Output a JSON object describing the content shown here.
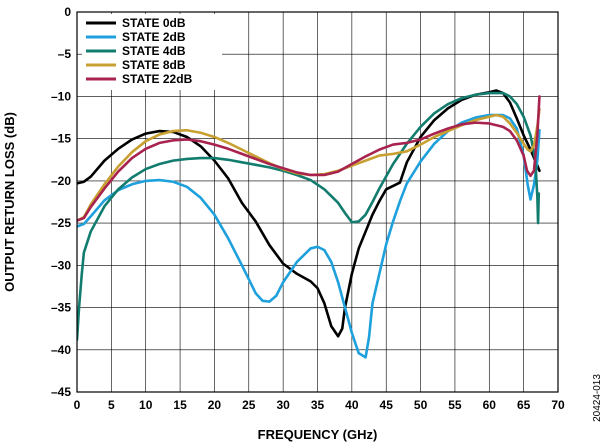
{
  "chart_data": {
    "type": "line",
    "title": "",
    "xlabel": "FREQUENCY (GHz)",
    "ylabel": "OUTPUT RETURN LOSS (dB)",
    "xlim": [
      0,
      70
    ],
    "ylim": [
      -45,
      0
    ],
    "x_ticks": [
      "0",
      "5",
      "10",
      "15",
      "20",
      "25",
      "30",
      "35",
      "40",
      "45",
      "50",
      "55",
      "60",
      "65",
      "70"
    ],
    "y_ticks": [
      "0",
      "–5",
      "–10",
      "–15",
      "–20",
      "–25",
      "–30",
      "–35",
      "–40",
      "–45"
    ],
    "grid": true,
    "legend_position": "top-left",
    "figure_id": "20424-013",
    "series": [
      {
        "name": "STATE 0dB",
        "color": "#000000",
        "points": [
          [
            0,
            -20.3
          ],
          [
            1,
            -20.1
          ],
          [
            2,
            -19.5
          ],
          [
            4,
            -17.6
          ],
          [
            6,
            -16.2
          ],
          [
            8,
            -15.1
          ],
          [
            10,
            -14.4
          ],
          [
            12,
            -14.1
          ],
          [
            14,
            -14.2
          ],
          [
            16,
            -14.8
          ],
          [
            18,
            -15.9
          ],
          [
            20,
            -17.6
          ],
          [
            22,
            -19.7
          ],
          [
            24,
            -22.6
          ],
          [
            26,
            -24.8
          ],
          [
            28,
            -27.6
          ],
          [
            30,
            -29.8
          ],
          [
            32,
            -31.0
          ],
          [
            34,
            -31.9
          ],
          [
            35,
            -32.7
          ],
          [
            36,
            -34.5
          ],
          [
            37,
            -37.2
          ],
          [
            38,
            -38.4
          ],
          [
            38.6,
            -37.5
          ],
          [
            39,
            -35.0
          ],
          [
            40,
            -31.0
          ],
          [
            41,
            -28.0
          ],
          [
            42,
            -26.0
          ],
          [
            43,
            -24.0
          ],
          [
            44,
            -22.4
          ],
          [
            45,
            -21.0
          ],
          [
            46,
            -20.6
          ],
          [
            47,
            -20.2
          ],
          [
            48,
            -17.8
          ],
          [
            50,
            -14.8
          ],
          [
            52,
            -12.8
          ],
          [
            54,
            -11.4
          ],
          [
            56,
            -10.4
          ],
          [
            58,
            -9.8
          ],
          [
            60,
            -9.5
          ],
          [
            61,
            -9.3
          ],
          [
            62,
            -9.6
          ],
          [
            63,
            -10.7
          ],
          [
            64,
            -12.6
          ],
          [
            65,
            -14.6
          ],
          [
            66,
            -16.3
          ],
          [
            67,
            -18.2
          ],
          [
            67.3,
            -18.8
          ]
        ]
      },
      {
        "name": "STATE 2dB",
        "color": "#1ea0dc",
        "points": [
          [
            0,
            -25.4
          ],
          [
            1,
            -25.1
          ],
          [
            2,
            -24.2
          ],
          [
            4,
            -22.3
          ],
          [
            6,
            -21.1
          ],
          [
            8,
            -20.4
          ],
          [
            10,
            -20.0
          ],
          [
            12,
            -19.9
          ],
          [
            14,
            -20.1
          ],
          [
            16,
            -20.7
          ],
          [
            18,
            -22.0
          ],
          [
            20,
            -24.0
          ],
          [
            22,
            -26.8
          ],
          [
            24,
            -30.0
          ],
          [
            26,
            -33.3
          ],
          [
            27,
            -34.2
          ],
          [
            28,
            -34.3
          ],
          [
            29,
            -33.6
          ],
          [
            30,
            -32.0
          ],
          [
            32,
            -29.6
          ],
          [
            34,
            -28.0
          ],
          [
            35,
            -27.8
          ],
          [
            36,
            -28.2
          ],
          [
            37,
            -29.6
          ],
          [
            38,
            -32.0
          ],
          [
            39,
            -35.0
          ],
          [
            40,
            -38.0
          ],
          [
            41,
            -40.4
          ],
          [
            42,
            -40.9
          ],
          [
            42.5,
            -38.5
          ],
          [
            43,
            -34.5
          ],
          [
            44,
            -31.0
          ],
          [
            45,
            -27.5
          ],
          [
            46,
            -24.8
          ],
          [
            47,
            -22.4
          ],
          [
            48,
            -20.3
          ],
          [
            50,
            -17.7
          ],
          [
            52,
            -15.6
          ],
          [
            54,
            -14.1
          ],
          [
            56,
            -13.1
          ],
          [
            58,
            -12.5
          ],
          [
            60,
            -12.2
          ],
          [
            62,
            -12.2
          ],
          [
            63,
            -12.6
          ],
          [
            64,
            -13.8
          ],
          [
            65,
            -17.0
          ],
          [
            65.6,
            -20.5
          ],
          [
            66,
            -22.2
          ],
          [
            66.5,
            -20.5
          ],
          [
            67,
            -17.5
          ],
          [
            67.3,
            -14.0
          ]
        ]
      },
      {
        "name": "STATE 4dB",
        "color": "#127c6e",
        "points": [
          [
            0,
            -38.8
          ],
          [
            0.3,
            -35.0
          ],
          [
            0.7,
            -31.0
          ],
          [
            1,
            -28.5
          ],
          [
            2,
            -26.0
          ],
          [
            4,
            -23.0
          ],
          [
            6,
            -21.0
          ],
          [
            8,
            -19.6
          ],
          [
            10,
            -18.6
          ],
          [
            12,
            -18.0
          ],
          [
            14,
            -17.6
          ],
          [
            16,
            -17.4
          ],
          [
            18,
            -17.3
          ],
          [
            20,
            -17.3
          ],
          [
            22,
            -17.5
          ],
          [
            24,
            -17.8
          ],
          [
            26,
            -18.1
          ],
          [
            28,
            -18.4
          ],
          [
            30,
            -18.8
          ],
          [
            32,
            -19.3
          ],
          [
            34,
            -19.9
          ],
          [
            36,
            -21.0
          ],
          [
            38,
            -22.6
          ],
          [
            39,
            -23.8
          ],
          [
            40,
            -24.9
          ],
          [
            41,
            -24.8
          ],
          [
            42,
            -24.0
          ],
          [
            43,
            -22.5
          ],
          [
            44,
            -20.9
          ],
          [
            46,
            -18.0
          ],
          [
            48,
            -15.6
          ],
          [
            50,
            -13.6
          ],
          [
            52,
            -12.0
          ],
          [
            54,
            -10.9
          ],
          [
            56,
            -10.2
          ],
          [
            58,
            -9.8
          ],
          [
            60,
            -9.6
          ],
          [
            62,
            -9.6
          ],
          [
            63,
            -10.0
          ],
          [
            64,
            -10.9
          ],
          [
            65,
            -12.4
          ],
          [
            66,
            -14.6
          ],
          [
            66.7,
            -17.5
          ],
          [
            67,
            -22.0
          ],
          [
            67.1,
            -25.0
          ],
          [
            67.2,
            -21.5
          ]
        ]
      },
      {
        "name": "STATE 8dB",
        "color": "#c8a032",
        "points": [
          [
            0,
            -24.7
          ],
          [
            1,
            -24.3
          ],
          [
            2,
            -22.8
          ],
          [
            4,
            -20.4
          ],
          [
            6,
            -18.3
          ],
          [
            8,
            -16.6
          ],
          [
            10,
            -15.3
          ],
          [
            12,
            -14.5
          ],
          [
            14,
            -14.1
          ],
          [
            16,
            -14.0
          ],
          [
            18,
            -14.3
          ],
          [
            20,
            -14.8
          ],
          [
            22,
            -15.5
          ],
          [
            24,
            -16.3
          ],
          [
            26,
            -17.1
          ],
          [
            28,
            -17.9
          ],
          [
            30,
            -18.6
          ],
          [
            32,
            -19.1
          ],
          [
            34,
            -19.3
          ],
          [
            36,
            -19.2
          ],
          [
            38,
            -18.8
          ],
          [
            40,
            -18.2
          ],
          [
            42,
            -17.6
          ],
          [
            44,
            -17.0
          ],
          [
            46,
            -16.8
          ],
          [
            48,
            -16.5
          ],
          [
            50,
            -15.7
          ],
          [
            52,
            -14.8
          ],
          [
            54,
            -14.1
          ],
          [
            56,
            -13.4
          ],
          [
            58,
            -12.8
          ],
          [
            60,
            -12.4
          ],
          [
            61,
            -12.2
          ],
          [
            62,
            -12.4
          ],
          [
            63,
            -13.2
          ],
          [
            64,
            -14.3
          ],
          [
            65,
            -15.6
          ],
          [
            65.6,
            -16.3
          ],
          [
            66,
            -16.5
          ],
          [
            66.5,
            -15.8
          ],
          [
            67,
            -13.5
          ],
          [
            67.3,
            -11.5
          ]
        ]
      },
      {
        "name": "STATE 22dB",
        "color": "#a8234e",
        "points": [
          [
            0,
            -24.7
          ],
          [
            1,
            -24.4
          ],
          [
            2,
            -23.1
          ],
          [
            4,
            -20.9
          ],
          [
            6,
            -18.9
          ],
          [
            8,
            -17.3
          ],
          [
            10,
            -16.2
          ],
          [
            12,
            -15.5
          ],
          [
            14,
            -15.2
          ],
          [
            16,
            -15.1
          ],
          [
            18,
            -15.3
          ],
          [
            20,
            -15.7
          ],
          [
            22,
            -16.2
          ],
          [
            24,
            -16.8
          ],
          [
            26,
            -17.4
          ],
          [
            28,
            -18.0
          ],
          [
            30,
            -18.5
          ],
          [
            32,
            -19.0
          ],
          [
            34,
            -19.3
          ],
          [
            36,
            -19.3
          ],
          [
            38,
            -18.9
          ],
          [
            40,
            -18.0
          ],
          [
            42,
            -17.1
          ],
          [
            44,
            -16.3
          ],
          [
            46,
            -15.7
          ],
          [
            48,
            -15.5
          ],
          [
            50,
            -15.1
          ],
          [
            52,
            -14.4
          ],
          [
            54,
            -13.8
          ],
          [
            56,
            -13.3
          ],
          [
            58,
            -13.1
          ],
          [
            60,
            -13.2
          ],
          [
            62,
            -13.6
          ],
          [
            63,
            -14.1
          ],
          [
            64,
            -15.2
          ],
          [
            65,
            -17.0
          ],
          [
            65.5,
            -18.8
          ],
          [
            66,
            -19.4
          ],
          [
            66.5,
            -18.8
          ],
          [
            67,
            -14.5
          ],
          [
            67.3,
            -10.0
          ]
        ]
      }
    ]
  }
}
